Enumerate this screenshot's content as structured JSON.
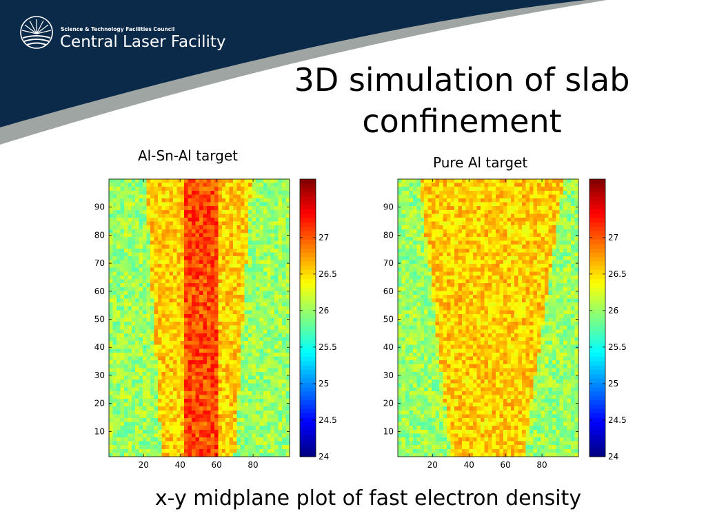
{
  "header": {
    "org_line": "Science & Technology Facilities Council",
    "facility_name": "Central Laser Facility",
    "colors": {
      "banner_navy": "#0b2a4a",
      "banner_grey": "#9fa5a2",
      "text_white": "#ffffff"
    }
  },
  "slide": {
    "title": "3D simulation of slab confinement",
    "caption": "x-y midplane plot of fast electron density"
  },
  "chart_data": [
    {
      "type": "heatmap",
      "label": "Al-Sn-Al target",
      "x": {
        "range": [
          1,
          100
        ],
        "ticks": [
          20,
          40,
          60,
          80
        ]
      },
      "y": {
        "range": [
          1,
          100
        ],
        "ticks": [
          10,
          20,
          30,
          40,
          50,
          60,
          70,
          80,
          90
        ]
      },
      "colorbar": {
        "range": [
          24,
          27.8
        ],
        "ticks": [
          24,
          24.5,
          25,
          25.5,
          26,
          26.5,
          27
        ],
        "colormap": "jet"
      },
      "background_value": 26.0,
      "regions": [
        {
          "name": "outer cone",
          "value": 26.55,
          "x_at_bottom": [
            30,
            70
          ],
          "x_at_top": [
            21,
            79
          ]
        },
        {
          "name": "central channel",
          "value": 27.05,
          "x_at_bottom": [
            42,
            60
          ],
          "x_at_top": [
            42,
            60
          ]
        }
      ]
    },
    {
      "type": "heatmap",
      "label": "Pure Al target",
      "x": {
        "range": [
          1,
          100
        ],
        "ticks": [
          20,
          40,
          60,
          80
        ]
      },
      "y": {
        "range": [
          1,
          100
        ],
        "ticks": [
          10,
          20,
          30,
          40,
          50,
          60,
          70,
          80,
          90
        ]
      },
      "colorbar": {
        "range": [
          24,
          27.8
        ],
        "ticks": [
          24,
          24.5,
          25,
          25.5,
          26,
          26.5,
          27
        ],
        "colormap": "jet"
      },
      "background_value": 26.0,
      "regions": [
        {
          "name": "divergent cone",
          "value": 26.55,
          "x_at_bottom": [
            30,
            70
          ],
          "x_at_top": [
            13,
            92
          ]
        }
      ]
    }
  ]
}
